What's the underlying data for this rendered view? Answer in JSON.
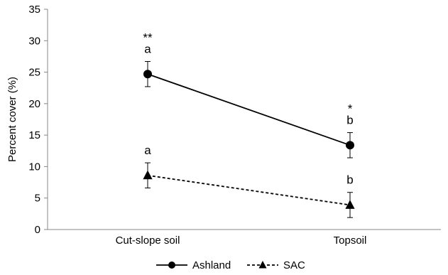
{
  "chart_data": {
    "type": "line",
    "title": "",
    "xlabel": "",
    "ylabel": "Percent cover (%)",
    "categories": [
      "Cut-slope soil",
      "Topsoil"
    ],
    "ylim": [
      0,
      35
    ],
    "yticks": [
      0,
      5,
      10,
      15,
      20,
      25,
      30,
      35
    ],
    "grid": false,
    "legend_position": "bottom",
    "series": [
      {
        "name": "Ashland",
        "marker": "circle",
        "line_style": "solid",
        "color": "#000000",
        "values": [
          24.7,
          13.4
        ],
        "error": [
          2.0,
          2.0
        ],
        "letters": [
          "a",
          "b"
        ],
        "stars": [
          "**",
          "*"
        ]
      },
      {
        "name": "SAC",
        "marker": "triangle",
        "line_style": "dashed",
        "color": "#000000",
        "values": [
          8.6,
          3.9
        ],
        "error": [
          2.0,
          2.0
        ],
        "letters": [
          "a",
          "b"
        ],
        "stars": [
          "",
          ""
        ]
      }
    ]
  }
}
